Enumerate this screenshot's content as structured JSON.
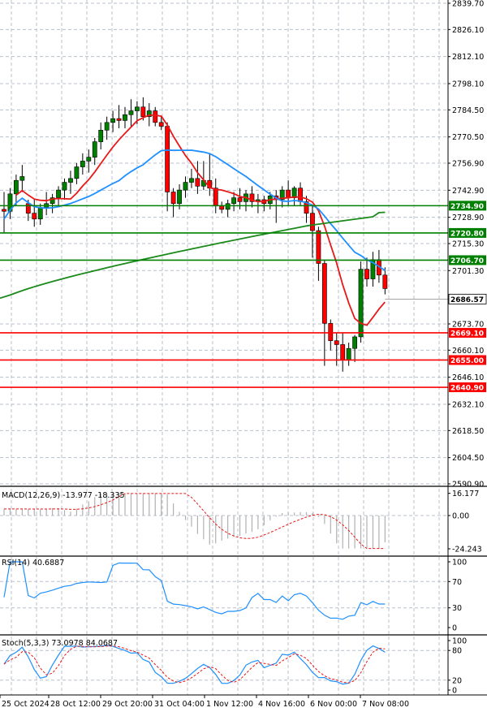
{
  "chart_data": {
    "type": "candlestick",
    "main": {
      "y_ticks": [
        2839.7,
        2826.1,
        2812.1,
        2798.1,
        2784.5,
        2770.5,
        2756.9,
        2742.9,
        2728.9,
        2715.3,
        2701.3,
        2673.7,
        2660.1,
        2646.1,
        2632.1,
        2618.5,
        2604.5,
        2590.9
      ],
      "ylim": [
        2590.9,
        2839.7
      ],
      "current_price": 2686.57,
      "levels": [
        {
          "value": 2734.9,
          "color": "#008000"
        },
        {
          "value": 2720.8,
          "color": "#008000"
        },
        {
          "value": 2706.7,
          "color": "#008000"
        },
        {
          "value": 2669.1,
          "color": "#ff0000"
        },
        {
          "value": 2655.0,
          "color": "#ff0000"
        },
        {
          "value": 2640.9,
          "color": "#ff0000"
        }
      ],
      "ohlc": [
        [
          2733,
          2742,
          2721,
          2732
        ],
        [
          2732,
          2744,
          2728,
          2741
        ],
        [
          2741,
          2751,
          2735,
          2748
        ],
        [
          2748,
          2756,
          2742,
          2750
        ],
        [
          2736,
          2738,
          2727,
          2731
        ],
        [
          2731,
          2738,
          2724,
          2728
        ],
        [
          2728,
          2736,
          2725,
          2734
        ],
        [
          2734,
          2742,
          2730,
          2736
        ],
        [
          2736,
          2741,
          2731,
          2739
        ],
        [
          2739,
          2745,
          2734,
          2743
        ],
        [
          2743,
          2749,
          2738,
          2747
        ],
        [
          2747,
          2753,
          2741,
          2749
        ],
        [
          2749,
          2757,
          2746,
          2755
        ],
        [
          2755,
          2762,
          2751,
          2758
        ],
        [
          2758,
          2764,
          2752,
          2760
        ],
        [
          2760,
          2770,
          2756,
          2768
        ],
        [
          2768,
          2778,
          2764,
          2774
        ],
        [
          2774,
          2781,
          2769,
          2778
        ],
        [
          2778,
          2784,
          2773,
          2780
        ],
        [
          2780,
          2787,
          2775,
          2779
        ],
        [
          2779,
          2786,
          2775,
          2782
        ],
        [
          2782,
          2790,
          2776,
          2784
        ],
        [
          2784,
          2789,
          2777,
          2786
        ],
        [
          2786,
          2791,
          2779,
          2781
        ],
        [
          2781,
          2788,
          2776,
          2784
        ],
        [
          2784,
          2786,
          2776,
          2778
        ],
        [
          2778,
          2781,
          2774,
          2776
        ],
        [
          2776,
          2778,
          2732,
          2742
        ],
        [
          2742,
          2744,
          2729,
          2736
        ],
        [
          2736,
          2746,
          2733,
          2743
        ],
        [
          2743,
          2750,
          2739,
          2747
        ],
        [
          2747,
          2754,
          2744,
          2749
        ],
        [
          2749,
          2758,
          2741,
          2745
        ],
        [
          2745,
          2758,
          2743,
          2748
        ],
        [
          2748,
          2762,
          2740,
          2744
        ],
        [
          2744,
          2749,
          2731,
          2735
        ],
        [
          2735,
          2737,
          2731,
          2733
        ],
        [
          2733,
          2738,
          2729,
          2736
        ],
        [
          2736,
          2742,
          2732,
          2739
        ],
        [
          2739,
          2744,
          2733,
          2737
        ],
        [
          2737,
          2743,
          2732,
          2741
        ],
        [
          2741,
          2745,
          2734,
          2737
        ],
        [
          2737,
          2741,
          2731,
          2738
        ],
        [
          2738,
          2740,
          2732,
          2736
        ],
        [
          2736,
          2742,
          2733,
          2740
        ],
        [
          2740,
          2743,
          2726,
          2738
        ],
        [
          2738,
          2745,
          2734,
          2743
        ],
        [
          2743,
          2748,
          2735,
          2739
        ],
        [
          2739,
          2745,
          2735,
          2744
        ],
        [
          2744,
          2747,
          2735,
          2737
        ],
        [
          2737,
          2740,
          2726,
          2731
        ],
        [
          2731,
          2735,
          2708,
          2722
        ],
        [
          2722,
          2724,
          2696,
          2705
        ],
        [
          2705,
          2707,
          2652,
          2674
        ],
        [
          2674,
          2676,
          2660,
          2665
        ],
        [
          2665,
          2669,
          2652,
          2663
        ],
        [
          2663,
          2669,
          2649,
          2655
        ],
        [
          2655,
          2664,
          2652,
          2661
        ],
        [
          2661,
          2668,
          2654,
          2667
        ],
        [
          2667,
          2706,
          2664,
          2702
        ],
        [
          2702,
          2708,
          2693,
          2697
        ],
        [
          2697,
          2711,
          2693,
          2707
        ],
        [
          2707,
          2712,
          2695,
          2699
        ],
        [
          2699,
          2703,
          2689,
          2692
        ]
      ]
    },
    "macd": {
      "label": "MACD(12,26,9) -13.977 -18.335",
      "y_ticks": [
        16.177,
        0.0,
        -24.243
      ],
      "ylim": [
        -26,
        17
      ]
    },
    "rsi": {
      "label": "RSI(14) 40.6887",
      "y_ticks": [
        100,
        70,
        30,
        0
      ],
      "ylim": [
        0,
        100
      ]
    },
    "stoch": {
      "label": "Stoch(5,3,3) 73.0978 84.0687",
      "y_ticks": [
        100,
        80,
        20,
        0
      ],
      "ylim": [
        0,
        100
      ]
    },
    "x_tick_labels": [
      "25 Oct 2024",
      "28 Oct 12:00",
      "29 Oct 20:00",
      "31 Oct 04:00",
      "1 Nov 12:00",
      "4 Nov 16:00",
      "6 Nov 00:00",
      "7 Nov 08:00"
    ],
    "colors": {
      "bull": "#008000",
      "bear": "#ff0000",
      "ma_fast": "#e81818",
      "ma_mid": "#1e90ff",
      "ma_slow": "#1a8a1a",
      "macd_signal": "#e81818",
      "rsi_line": "#1e90ff",
      "stoch_main": "#1e90ff",
      "stoch_signal": "#e81818",
      "grid": "#b8c0cc"
    }
  }
}
